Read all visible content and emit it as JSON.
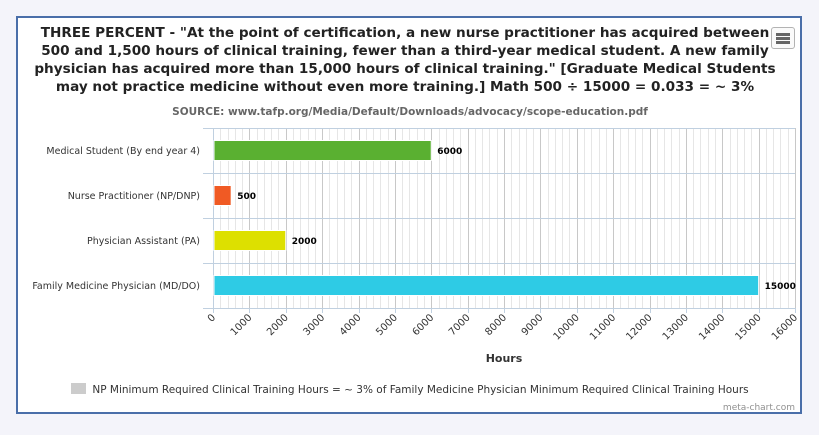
{
  "chart_data": {
    "type": "bar",
    "orientation": "horizontal",
    "title": "THREE PERCENT - \"At the point of certification, a new nurse practitioner has acquired between 500 and 1,500 hours of clinical training, fewer than a third-year medical student. A new family physician has acquired more than 15,000 hours of clinical training.\" [Graduate Medical Students may not practice medicine without even more training.] Math 500 ÷ 15000 = 0.033 = ~ 3%",
    "subtitle": "SOURCE: www.tafp.org/Media/Default/Downloads/advocacy/scope-education.pdf",
    "categories": [
      "Medical Student (By end year 4)",
      "Nurse Practitioner (NP/DNP)",
      "Physician Assistant (PA)",
      "Family Medicine Physician (MD/DO)"
    ],
    "values": [
      6000,
      500,
      2000,
      15000
    ],
    "colors": [
      "#5ab031",
      "#f05a24",
      "#dde000",
      "#2ecbe5"
    ],
    "xlabel": "Hours",
    "ylabel": "",
    "xlim": [
      0,
      16000
    ],
    "tick_labels": [
      "0",
      "1000",
      "2000",
      "3000",
      "4000",
      "5000",
      "6000",
      "7000",
      "8000",
      "9000",
      "10000",
      "11000",
      "12000",
      "13000",
      "14000",
      "15000",
      "16000"
    ],
    "minor_grid_step": 200,
    "grid": true,
    "legend": {
      "position": "bottom",
      "entries": [
        {
          "label": "NP Minimum Required Clinical Training Hours = ~ 3% of Family Medicine Physician Minimum Required Clinical Training Hours",
          "color": "#cccccc"
        }
      ]
    }
  },
  "credits": "meta-chart.com",
  "menu_icon": "hamburger-menu-icon"
}
